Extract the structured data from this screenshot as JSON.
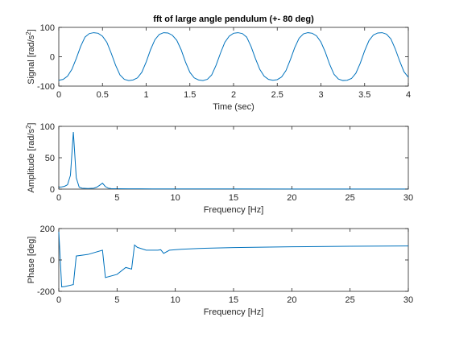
{
  "chart_data": [
    {
      "type": "line",
      "title": "fft of large angle pendulum (+- 80 deg)",
      "xlabel": "Time (sec)",
      "ylabel": "Signal [rad/s",
      "ylabel_superscript": "2",
      "ylabel_suffix": "]",
      "xlim": [
        0,
        4
      ],
      "ylim": [
        -100,
        100
      ],
      "xticks": [
        "0",
        "0.5",
        "1",
        "1.5",
        "2",
        "2.5",
        "3",
        "3.5",
        "4"
      ],
      "yticks": [
        "-100",
        "0",
        "100"
      ],
      "series": [
        {
          "color": "#0072bd",
          "x": [
            0,
            0.05,
            0.1,
            0.15,
            0.2,
            0.25,
            0.3,
            0.35,
            0.4,
            0.45,
            0.5,
            0.55,
            0.6,
            0.65,
            0.7,
            0.75,
            0.8,
            0.85,
            0.9,
            0.95,
            1.0,
            1.05,
            1.1,
            1.15,
            1.2,
            1.25,
            1.3,
            1.35,
            1.4,
            1.45,
            1.5,
            1.55,
            1.6,
            1.65,
            1.7,
            1.75,
            1.8,
            1.85,
            1.9,
            1.95,
            2.0,
            2.05,
            2.1,
            2.15,
            2.2,
            2.25,
            2.3,
            2.35,
            2.4,
            2.45,
            2.5,
            2.55,
            2.6,
            2.65,
            2.7,
            2.75,
            2.8,
            2.85,
            2.9,
            2.95,
            3.0,
            3.05,
            3.1,
            3.15,
            3.2,
            3.25,
            3.3,
            3.35,
            3.4,
            3.45,
            3.5,
            3.55,
            3.6,
            3.65,
            3.7,
            3.75,
            3.8,
            3.85,
            3.9,
            3.95,
            4.0
          ],
          "y": [
            -80,
            -77,
            -66,
            -43,
            -6,
            35,
            67,
            79,
            82,
            80,
            70,
            49,
            12,
            -29,
            -62,
            -77,
            -81,
            -79,
            -72,
            -53,
            -18,
            24,
            58,
            76,
            82,
            81,
            73,
            56,
            24,
            -18,
            -53,
            -72,
            -79,
            -81,
            -77,
            -62,
            -29,
            12,
            49,
            70,
            80,
            82,
            79,
            67,
            35,
            -6,
            -43,
            -66,
            -77,
            -80,
            -78,
            -69,
            -47,
            -10,
            31,
            63,
            78,
            82,
            80,
            71,
            50,
            16,
            -26,
            -60,
            -76,
            -81,
            -80,
            -74,
            -56,
            -22,
            20,
            55,
            74,
            81,
            82,
            77,
            61,
            27,
            -14,
            -51,
            -70
          ]
        }
      ]
    },
    {
      "type": "line",
      "title": "",
      "xlabel": "Frequency [Hz]",
      "ylabel": "Amplitude [rad/s",
      "ylabel_superscript": "2",
      "ylabel_suffix": "]",
      "xlim": [
        0,
        30
      ],
      "ylim": [
        0,
        100
      ],
      "xticks": [
        "0",
        "5",
        "10",
        "15",
        "20",
        "25",
        "30"
      ],
      "yticks": [
        "0",
        "50",
        "100"
      ],
      "series": [
        {
          "color": "#0072bd",
          "x": [
            0,
            0.25,
            0.5,
            0.75,
            1.0,
            1.25,
            1.5,
            1.75,
            2.0,
            2.5,
            3.0,
            3.25,
            3.5,
            3.75,
            4.0,
            4.25,
            4.5,
            5.0,
            6.0,
            7.0,
            8.0,
            9.0,
            10,
            12,
            15,
            20,
            25,
            30
          ],
          "y": [
            3,
            3.5,
            4.5,
            7,
            22,
            91,
            18,
            3,
            1.5,
            1,
            1.5,
            3,
            6,
            9.5,
            4,
            1.5,
            0.8,
            0.6,
            0.5,
            0.5,
            0.4,
            0.4,
            0.3,
            0.3,
            0.3,
            0.2,
            0.2,
            0.2
          ]
        }
      ]
    },
    {
      "type": "line",
      "title": "",
      "xlabel": "Frequency [Hz]",
      "ylabel": "Phase [deg]",
      "ylabel_superscript": "",
      "ylabel_suffix": "",
      "xlim": [
        0,
        30
      ],
      "ylim": [
        -200,
        200
      ],
      "xticks": [
        "0",
        "5",
        "10",
        "15",
        "20",
        "25",
        "30"
      ],
      "yticks": [
        "-200",
        "0",
        "200"
      ],
      "series": [
        {
          "color": "#0072bd",
          "x": [
            0,
            0.25,
            0.5,
            1.25,
            1.5,
            2.5,
            3.75,
            4.0,
            5.0,
            5.75,
            6.25,
            6.5,
            6.75,
            7.5,
            8.5,
            8.75,
            9.0,
            9.5,
            10.5,
            12,
            15,
            20,
            25,
            30
          ],
          "y": [
            180,
            -172,
            -170,
            -157,
            25,
            35,
            62,
            -112,
            -92,
            -48,
            -58,
            95,
            80,
            62,
            62,
            65,
            42,
            62,
            68,
            73,
            79,
            84,
            87,
            89
          ]
        }
      ]
    }
  ]
}
